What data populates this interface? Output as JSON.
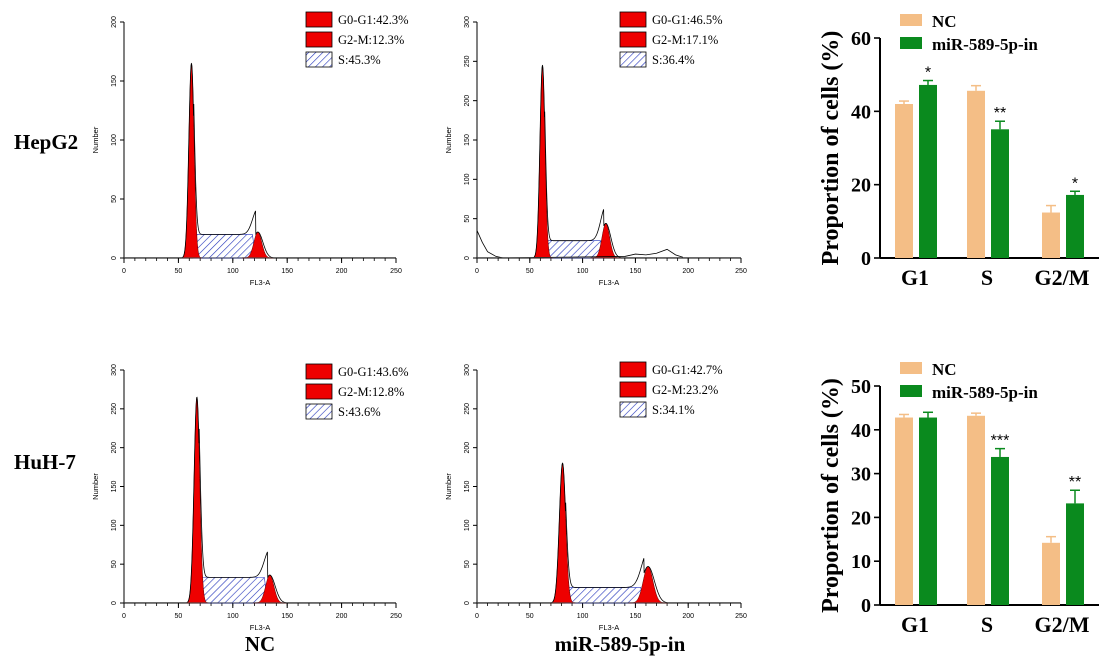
{
  "row_labels": [
    "HepG2",
    "HuH-7"
  ],
  "col_labels": [
    "NC",
    "miR-589-5p-in"
  ],
  "colors": {
    "g1_fill": "#ee0000",
    "hist_line": "#000000",
    "s_hatch": "#2233bb",
    "nc_bar": "#f4be86",
    "mir_bar": "#0a8a1e"
  },
  "chart_data": [
    {
      "id": "hepg2-nc",
      "type": "histogram",
      "xlabel": "FL3-A",
      "ylabel": "Number",
      "xlim": [
        0,
        250
      ],
      "ylim": [
        0,
        200
      ],
      "xticks": [
        0,
        50,
        100,
        150,
        200,
        250
      ],
      "yticks": [
        0,
        50,
        100,
        150,
        200
      ],
      "legend": [
        "G0-G1:42.3%",
        "G2-M:12.3%",
        "S:45.3%"
      ],
      "g1": {
        "center": 62,
        "height": 165,
        "sigma": 2.4
      },
      "g2": {
        "center": 123,
        "height": 22,
        "sigma": 3.6
      },
      "s": {
        "from": 64,
        "to": 121,
        "height": 20
      },
      "total_peak2": 34,
      "baseline": []
    },
    {
      "id": "hepg2-mir",
      "type": "histogram",
      "xlabel": "FL3-A",
      "ylabel": "Number",
      "xlim": [
        0,
        250
      ],
      "ylim": [
        0,
        300
      ],
      "xticks": [
        0,
        50,
        100,
        150,
        200,
        250
      ],
      "yticks": [
        0,
        50,
        100,
        150,
        200,
        250,
        300
      ],
      "legend": [
        "G0-G1:46.5%",
        "G2-M:17.1%",
        "S:36.4%"
      ],
      "g1": {
        "center": 62,
        "height": 245,
        "sigma": 2.4
      },
      "g2": {
        "center": 122,
        "height": 44,
        "sigma": 3.6
      },
      "s": {
        "from": 64,
        "to": 120,
        "height": 22
      },
      "total_peak2": 56,
      "baseline": [
        [
          0,
          35
        ],
        [
          5,
          20
        ],
        [
          10,
          8
        ],
        [
          18,
          2
        ],
        [
          25,
          0
        ],
        [
          140,
          2
        ],
        [
          150,
          5
        ],
        [
          160,
          4
        ],
        [
          170,
          6
        ],
        [
          180,
          11
        ],
        [
          188,
          4
        ],
        [
          195,
          1
        ]
      ]
    },
    {
      "id": "huh7-nc",
      "type": "histogram",
      "xlabel": "FL3-A",
      "ylabel": "Number",
      "xlim": [
        0,
        250
      ],
      "ylim": [
        0,
        300
      ],
      "xticks": [
        0,
        50,
        100,
        150,
        200,
        250
      ],
      "yticks": [
        0,
        50,
        100,
        150,
        200,
        250,
        300
      ],
      "legend": [
        "G0-G1:43.6%",
        "G2-M:12.8%",
        "S:43.6%"
      ],
      "g1": {
        "center": 67,
        "height": 265,
        "sigma": 2.6
      },
      "g2": {
        "center": 134,
        "height": 36,
        "sigma": 3.8
      },
      "s": {
        "from": 69,
        "to": 132,
        "height": 33
      },
      "total_peak2": 55,
      "baseline": []
    },
    {
      "id": "huh7-mir",
      "type": "histogram",
      "xlabel": "FL3-A",
      "ylabel": "Number",
      "xlim": [
        0,
        250
      ],
      "ylim": [
        0,
        300
      ],
      "xticks": [
        0,
        50,
        100,
        150,
        200,
        250
      ],
      "yticks": [
        0,
        50,
        100,
        150,
        200,
        250,
        300
      ],
      "legend": [
        "G0-G1:42.7%",
        "G2-M:23.2%",
        "S:34.1%"
      ],
      "g1": {
        "center": 81,
        "height": 180,
        "sigma": 3.0
      },
      "g2": {
        "center": 162,
        "height": 47,
        "sigma": 4.6
      },
      "s": {
        "from": 84,
        "to": 158,
        "height": 20
      },
      "total_peak2": 58,
      "baseline": []
    },
    {
      "id": "hepg2-bar",
      "type": "bar",
      "ylabel": "Proportion of cells (%)",
      "categories": [
        "G1",
        "S",
        "G2/M"
      ],
      "ylim": [
        0,
        60
      ],
      "yticks": [
        0,
        20,
        40,
        60
      ],
      "series": [
        {
          "name": "NC",
          "values": [
            42.0,
            45.6,
            12.4
          ],
          "errors": [
            0.8,
            1.4,
            1.9
          ]
        },
        {
          "name": "miR-589-5p-in",
          "values": [
            47.2,
            35.1,
            17.2
          ],
          "errors": [
            1.2,
            2.2,
            1.0
          ]
        }
      ],
      "significance": [
        "*",
        "**",
        "*"
      ],
      "legend_placement": "top-left"
    },
    {
      "id": "huh7-bar",
      "type": "bar",
      "ylabel": "Proportion of cells (%)",
      "categories": [
        "G1",
        "S",
        "G2/M"
      ],
      "ylim": [
        0,
        50
      ],
      "yticks": [
        0,
        10,
        20,
        30,
        40,
        50
      ],
      "series": [
        {
          "name": "NC",
          "values": [
            42.8,
            43.2,
            14.2
          ],
          "errors": [
            0.7,
            0.6,
            1.4
          ]
        },
        {
          "name": "miR-589-5p-in",
          "values": [
            42.8,
            33.8,
            23.2
          ],
          "errors": [
            1.2,
            1.9,
            3.0
          ]
        }
      ],
      "significance": [
        "",
        "***",
        "**"
      ],
      "legend_placement": "top-left"
    }
  ]
}
